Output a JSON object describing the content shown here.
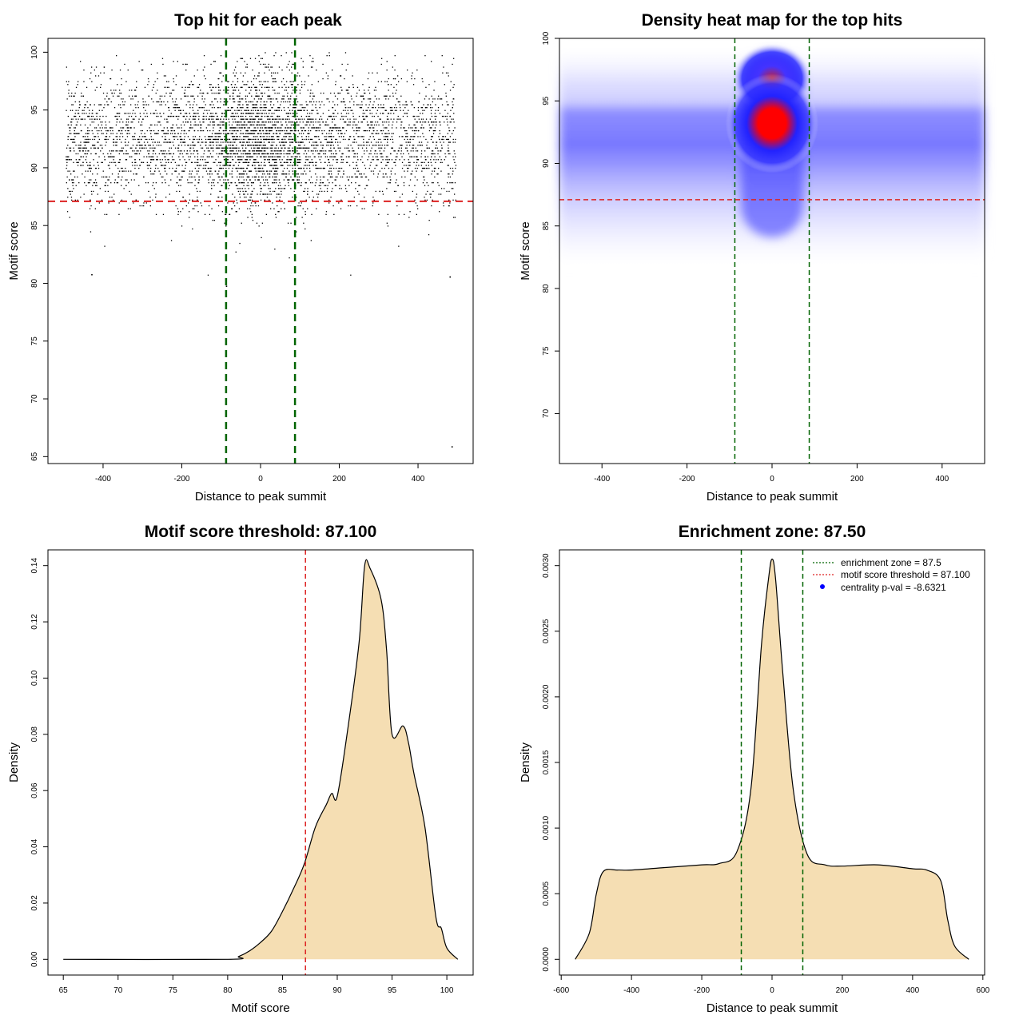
{
  "chart_data": [
    {
      "type": "scatter",
      "title": "Top hit for each peak",
      "xlabel": "Distance to peak summit",
      "ylabel": "Motif score",
      "xlim": [
        -500,
        500
      ],
      "ylim": [
        65,
        100
      ],
      "xticks": [
        "-400",
        "-200",
        "0",
        "200",
        "400"
      ],
      "yticks": [
        "65",
        "70",
        "75",
        "80",
        "85",
        "90",
        "95",
        "100"
      ],
      "vlines": [
        -87.5,
        87.5
      ],
      "vline_color": "#006400",
      "hline": 87.1,
      "hline_color": "#dd2222",
      "points_description_core": {
        "x_center": 0,
        "x_spread": 500,
        "y_center": 92.5,
        "y_range": [
          80.5,
          100
        ]
      },
      "outliers": [
        {
          "x": -88,
          "y": 79.8
        },
        {
          "x": 485,
          "y": 65.9
        },
        {
          "x": -430,
          "y": 80.8
        },
        {
          "x": 480,
          "y": 80.6
        }
      ]
    },
    {
      "type": "heatmap",
      "title": "Density heat map for the top hits",
      "xlabel": "Distance to peak summit",
      "ylabel": "Motif score",
      "xlim": [
        -500,
        500
      ],
      "ylim": [
        66,
        100
      ],
      "xticks": [
        "-400",
        "-200",
        "0",
        "200",
        "400"
      ],
      "yticks": [
        "70",
        "75",
        "80",
        "85",
        "90",
        "95",
        "100"
      ],
      "vlines": [
        -87.5,
        87.5
      ],
      "hline": 87.1,
      "hotspot": {
        "x": 0,
        "y": 93.2
      },
      "secondary_hotspot": {
        "x": 0,
        "y": 96.8
      },
      "colors": [
        "#ffffff",
        "#0000ff",
        "#ff0000"
      ]
    },
    {
      "type": "area",
      "title": "Motif score threshold: 87.100",
      "xlabel": "Motif score",
      "ylabel": "Density",
      "xlim": [
        65,
        101
      ],
      "ylim": [
        0,
        0.14
      ],
      "xticks": [
        "65",
        "70",
        "75",
        "80",
        "85",
        "90",
        "95",
        "100"
      ],
      "yticks": [
        "0.00",
        "0.02",
        "0.04",
        "0.06",
        "0.08",
        "0.10",
        "0.12",
        "0.14"
      ],
      "vline": 87.1,
      "fill": "#f5deb3",
      "x": [
        65,
        80,
        81,
        82,
        83,
        84,
        85,
        86,
        87,
        88,
        89,
        89.5,
        90,
        91,
        92,
        92.5,
        93,
        94,
        94.5,
        95,
        96,
        96.5,
        97,
        98,
        99,
        99.5,
        100,
        101
      ],
      "y": [
        0,
        0,
        0.001,
        0.003,
        0.006,
        0.01,
        0.017,
        0.025,
        0.034,
        0.047,
        0.055,
        0.059,
        0.058,
        0.083,
        0.113,
        0.14,
        0.139,
        0.128,
        0.11,
        0.08,
        0.083,
        0.077,
        0.066,
        0.047,
        0.015,
        0.011,
        0.004,
        0
      ]
    },
    {
      "type": "area",
      "title": "Enrichment zone: 87.50",
      "xlabel": "Distance to peak summit",
      "ylabel": "Density",
      "xlim": [
        -600,
        600
      ],
      "ylim": [
        0,
        0.003
      ],
      "xticks": [
        "-600",
        "-400",
        "-200",
        "0",
        "200",
        "400",
        "600"
      ],
      "yticks": [
        "0.0000",
        "0.0005",
        "0.0010",
        "0.0015",
        "0.0020",
        "0.0025",
        "0.0030"
      ],
      "vlines": [
        -87.5,
        87.5
      ],
      "fill": "#f5deb3",
      "x": [
        -560,
        -520,
        -500,
        -480,
        -440,
        -400,
        -300,
        -200,
        -150,
        -100,
        -60,
        -30,
        -10,
        0,
        10,
        30,
        60,
        100,
        150,
        200,
        300,
        400,
        440,
        480,
        500,
        520,
        560
      ],
      "y": [
        0,
        0.0002,
        0.0005,
        0.00067,
        0.00068,
        0.00068,
        0.0007,
        0.00072,
        0.00073,
        0.00082,
        0.0013,
        0.0024,
        0.0029,
        0.00305,
        0.0029,
        0.0022,
        0.0013,
        0.0008,
        0.00072,
        0.00071,
        0.00072,
        0.00069,
        0.00068,
        0.0006,
        0.0003,
        0.0001,
        0
      ],
      "legend": {
        "position": "top-right",
        "entries": [
          {
            "label": "enrichment zone = 87.5",
            "color": "#006400",
            "style": "dotted-line"
          },
          {
            "label": "motif score threshold = 87.100",
            "color": "#dd2222",
            "style": "dotted-line"
          },
          {
            "label": "centrality p-val = -8.6321",
            "color": "#0000ff",
            "style": "point"
          }
        ]
      }
    }
  ]
}
